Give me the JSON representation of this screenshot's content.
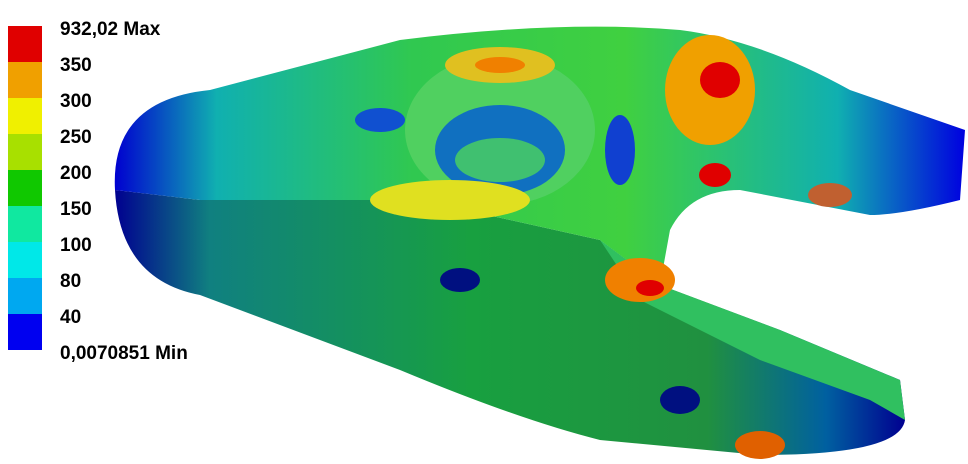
{
  "legend": {
    "labels": [
      "932,02 Max",
      "350",
      "300",
      "250",
      "200",
      "150",
      "100",
      "80",
      "40",
      "0,0070851 Min"
    ],
    "colors": [
      "#e00000",
      "#f0a000",
      "#f0f000",
      "#a8e000",
      "#10c800",
      "#10e8a0",
      "#00e8e8",
      "#00a8f0",
      "#0000f0"
    ]
  }
}
